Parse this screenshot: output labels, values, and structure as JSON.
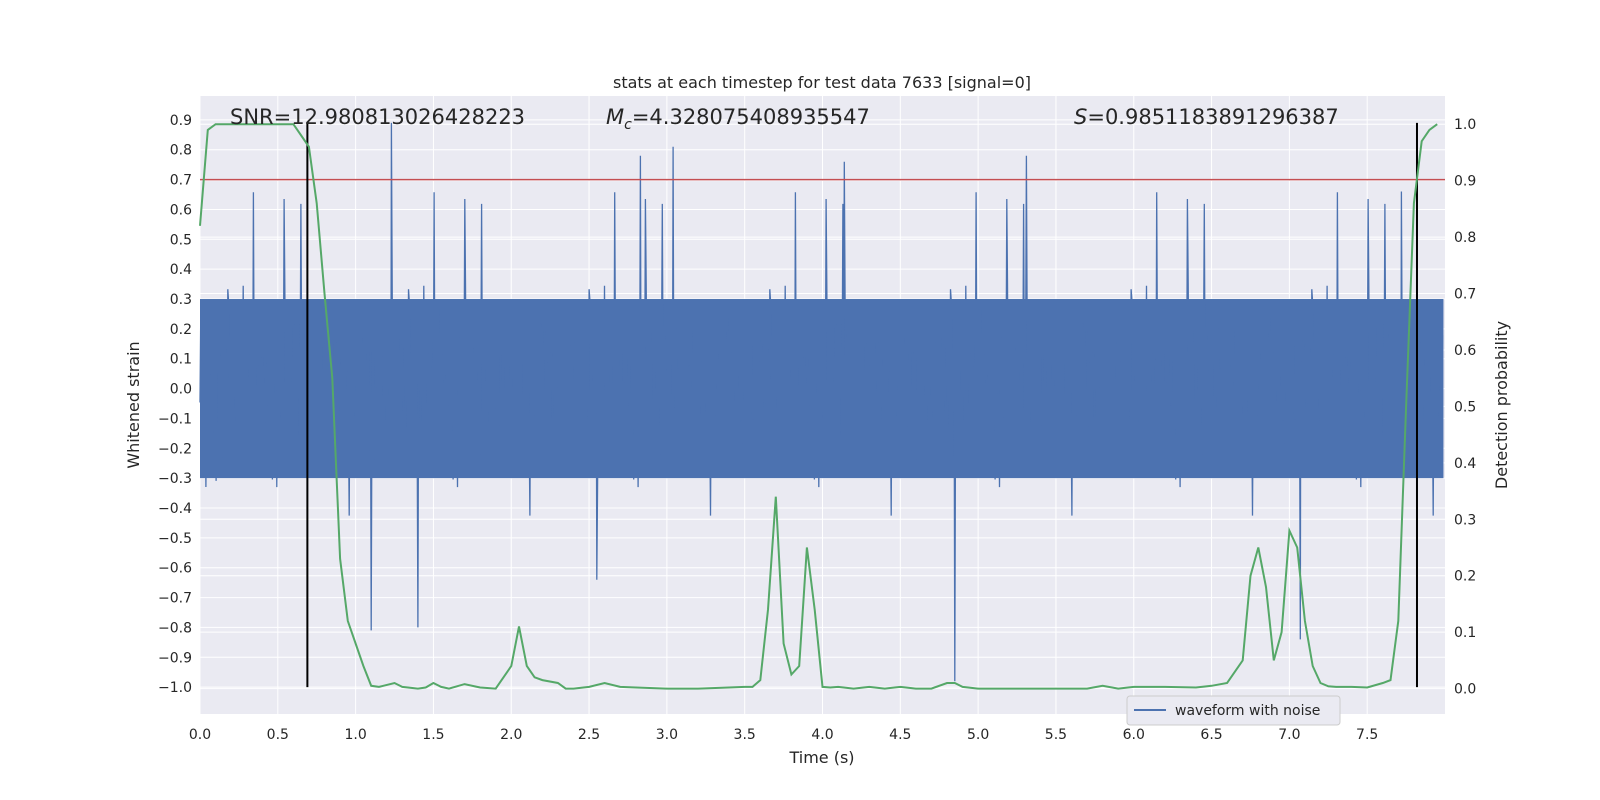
{
  "chart_data": {
    "type": "line",
    "title": "stats at each timestep for test data 7633 [signal=0]",
    "xlabel": "Time (s)",
    "ylabel": "Whitened strain",
    "y2label": "Detection probability",
    "xlim": [
      0.0,
      8.0
    ],
    "ylim": [
      -1.09,
      0.98
    ],
    "y2lim": [
      -0.045,
      1.05
    ],
    "xticks": [
      "0.0",
      "0.5",
      "1.0",
      "1.5",
      "2.0",
      "2.5",
      "3.0",
      "3.5",
      "4.0",
      "4.5",
      "5.0",
      "5.5",
      "6.0",
      "6.5",
      "7.0",
      "7.5"
    ],
    "xtick_values": [
      0.0,
      0.5,
      1.0,
      1.5,
      2.0,
      2.5,
      3.0,
      3.5,
      4.0,
      4.5,
      5.0,
      5.5,
      6.0,
      6.5,
      7.0,
      7.5
    ],
    "yticks": [
      "0.9",
      "0.8",
      "0.7",
      "0.6",
      "0.5",
      "0.4",
      "0.3",
      "0.2",
      "0.1",
      "0.0",
      "−0.1",
      "−0.2",
      "−0.3",
      "−0.4",
      "−0.5",
      "−0.6",
      "−0.7",
      "−0.8",
      "−0.9",
      "−1.0"
    ],
    "ytick_values": [
      0.9,
      0.8,
      0.7,
      0.6,
      0.5,
      0.4,
      0.3,
      0.2,
      0.1,
      0.0,
      -0.1,
      -0.2,
      -0.3,
      -0.4,
      -0.5,
      -0.6,
      -0.7,
      -0.8,
      -0.9,
      -1.0
    ],
    "y2ticks": [
      "1.0",
      "0.9",
      "0.8",
      "0.7",
      "0.6",
      "0.5",
      "0.4",
      "0.3",
      "0.2",
      "0.1",
      "0.0"
    ],
    "y2tick_values": [
      1.0,
      0.9,
      0.8,
      0.7,
      0.6,
      0.5,
      0.4,
      0.3,
      0.2,
      0.1,
      0.0
    ],
    "annotations": {
      "snr": "SNR=12.980813026428223",
      "mc_symbol": "M",
      "mc_sub": "c",
      "mc_value": "=4.328075408935547",
      "s_symbol": "S",
      "s_value": "=0.9851183891296387"
    },
    "threshold": {
      "y": 0.7,
      "color": "#c44e52"
    },
    "vlines": [
      {
        "x": 0.69,
        "ymin": -1.0,
        "ymax": 0.89
      },
      {
        "x": 7.82,
        "ymin": -1.0,
        "ymax": 0.89
      }
    ],
    "legend": {
      "label": "waveform with noise",
      "loc": "lower right"
    },
    "series": [
      {
        "name": "waveform with noise",
        "axis": "left",
        "color": "#4c72b0",
        "description": "noisy whitened strain, roughly symmetric about 0 with envelope near ±0.3 and spikes up to 0.9 / down to −1.0",
        "spikes_high": [
          [
            1.23,
            0.89
          ],
          [
            3.04,
            0.81
          ],
          [
            2.83,
            0.78
          ],
          [
            4.14,
            0.76
          ],
          [
            5.31,
            0.78
          ],
          [
            7.72,
            0.66
          ]
        ],
        "spikes_low": [
          [
            1.1,
            -0.81
          ],
          [
            1.4,
            -0.8
          ],
          [
            2.55,
            -0.64
          ],
          [
            4.85,
            -0.98
          ],
          [
            7.07,
            -0.84
          ]
        ]
      },
      {
        "name": "detection probability",
        "axis": "right",
        "color": "#55a868",
        "x": [
          0.0,
          0.05,
          0.1,
          0.2,
          0.3,
          0.4,
          0.5,
          0.6,
          0.65,
          0.7,
          0.75,
          0.8,
          0.85,
          0.9,
          0.95,
          1.0,
          1.05,
          1.1,
          1.15,
          1.25,
          1.3,
          1.4,
          1.45,
          1.5,
          1.55,
          1.6,
          1.7,
          1.8,
          1.9,
          2.0,
          2.05,
          2.1,
          2.15,
          2.2,
          2.3,
          2.35,
          2.4,
          2.5,
          2.6,
          2.7,
          2.8,
          3.0,
          3.2,
          3.4,
          3.5,
          3.55,
          3.6,
          3.65,
          3.7,
          3.75,
          3.8,
          3.85,
          3.9,
          3.95,
          4.0,
          4.05,
          4.1,
          4.2,
          4.3,
          4.4,
          4.5,
          4.6,
          4.7,
          4.8,
          4.85,
          4.9,
          5.0,
          5.2,
          5.4,
          5.5,
          5.7,
          5.8,
          5.9,
          6.0,
          6.2,
          6.4,
          6.5,
          6.6,
          6.7,
          6.75,
          6.8,
          6.85,
          6.9,
          6.95,
          7.0,
          7.05,
          7.1,
          7.15,
          7.2,
          7.25,
          7.3,
          7.4,
          7.5,
          7.6,
          7.65,
          7.7,
          7.75,
          7.8,
          7.85,
          7.9,
          7.95
        ],
        "values": [
          0.82,
          0.99,
          1.0,
          1.0,
          1.0,
          1.0,
          1.0,
          1.0,
          0.98,
          0.96,
          0.86,
          0.7,
          0.55,
          0.23,
          0.12,
          0.08,
          0.04,
          0.005,
          0.003,
          0.01,
          0.003,
          0.0,
          0.002,
          0.01,
          0.003,
          0.0,
          0.008,
          0.002,
          0.0,
          0.04,
          0.11,
          0.04,
          0.02,
          0.015,
          0.01,
          0.0,
          0.0,
          0.003,
          0.01,
          0.003,
          0.002,
          0.0,
          0.0,
          0.002,
          0.003,
          0.003,
          0.015,
          0.14,
          0.34,
          0.08,
          0.025,
          0.04,
          0.25,
          0.14,
          0.003,
          0.002,
          0.003,
          0.0,
          0.003,
          0.0,
          0.003,
          0.0,
          0.0,
          0.01,
          0.01,
          0.003,
          0.0,
          0.0,
          0.0,
          0.0,
          0.0,
          0.005,
          0.0,
          0.003,
          0.003,
          0.002,
          0.005,
          0.01,
          0.05,
          0.2,
          0.25,
          0.18,
          0.05,
          0.1,
          0.28,
          0.25,
          0.12,
          0.04,
          0.01,
          0.004,
          0.003,
          0.003,
          0.002,
          0.01,
          0.015,
          0.12,
          0.5,
          0.86,
          0.97,
          0.99,
          1.0
        ]
      }
    ]
  }
}
